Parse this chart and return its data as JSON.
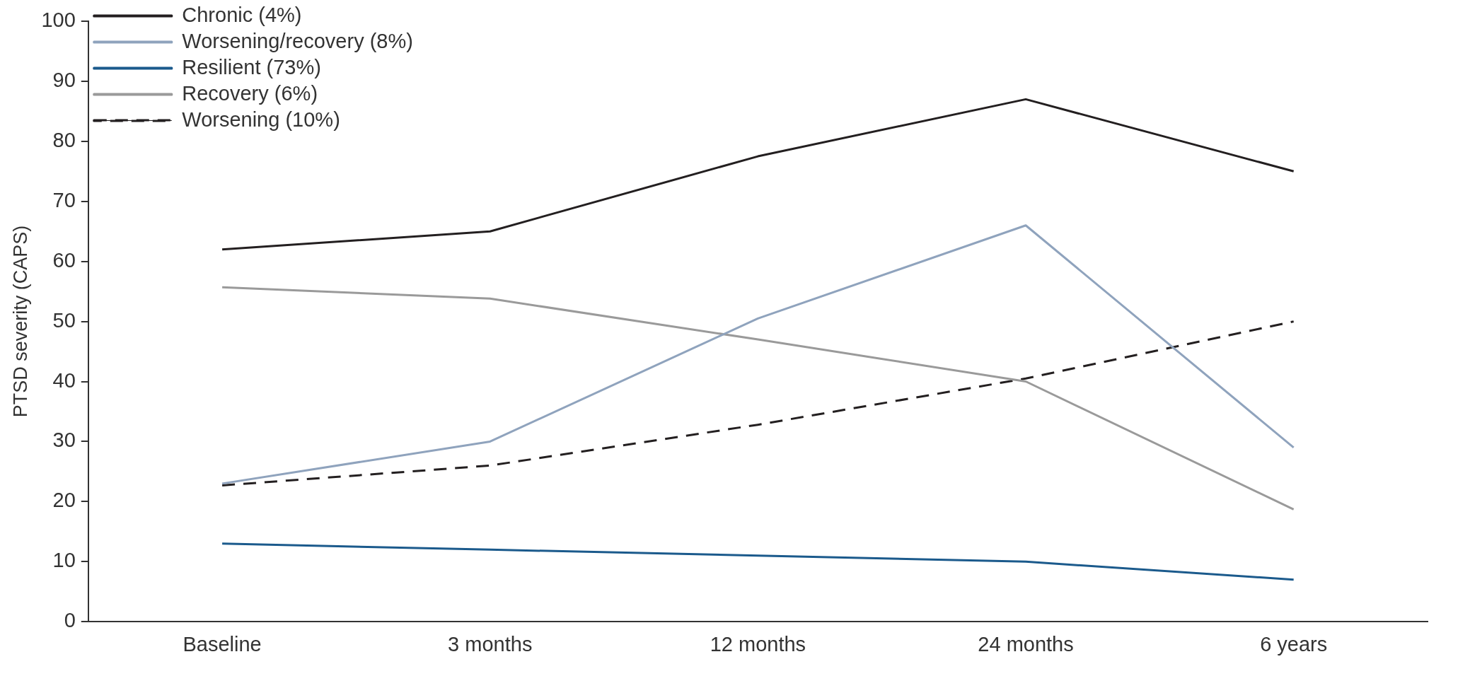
{
  "chart_data": {
    "type": "line",
    "ylabel": "PTSD severity (CAPS)",
    "categories": [
      "Baseline",
      "3 months",
      "12 months",
      "24 months",
      "6 years"
    ],
    "ylim": [
      0,
      100
    ],
    "yticks": [
      0,
      10,
      20,
      30,
      40,
      50,
      60,
      70,
      80,
      90,
      100
    ],
    "grid": false,
    "legend": "top left",
    "marker": "none",
    "series": [
      {
        "name": "Chronic (4%)",
        "color": "#231f20",
        "values": [
          62,
          65,
          77.5,
          87,
          75
        ]
      },
      {
        "name": "Worsening/recovery (8%)",
        "color": "#8fa3bd",
        "values": [
          23,
          30,
          50.5,
          66,
          29
        ]
      },
      {
        "name": "Resilient (73%)",
        "color": "#1b5a8c",
        "values": [
          13,
          12,
          11,
          10,
          7
        ]
      },
      {
        "name": "Recovery (6%)",
        "color": "#9a9a9a",
        "values": [
          55.7,
          53.8,
          47,
          40,
          18.7
        ]
      },
      {
        "name": "Worsening (10%)",
        "color": "#231f20",
        "line_style": "dashed",
        "values": [
          22.7,
          26,
          32.8,
          40.5,
          50
        ]
      }
    ]
  }
}
